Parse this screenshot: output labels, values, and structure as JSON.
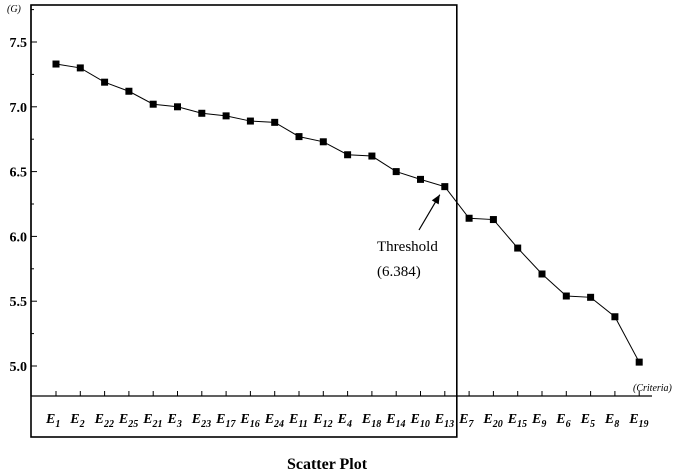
{
  "chart_data": {
    "type": "line",
    "y_unit": "(G)",
    "x_unit": "(Criteria)",
    "title": "Scatter Plot",
    "ylim": [
      4.85,
      7.65
    ],
    "yticks": [
      5.0,
      5.5,
      6.0,
      6.5,
      7.0,
      7.5
    ],
    "categories": [
      {
        "base": "E",
        "sub": "1"
      },
      {
        "base": "E",
        "sub": "2"
      },
      {
        "base": "E",
        "sub": "22"
      },
      {
        "base": "E",
        "sub": "25"
      },
      {
        "base": "E",
        "sub": "21"
      },
      {
        "base": "E",
        "sub": "3"
      },
      {
        "base": "E",
        "sub": "23"
      },
      {
        "base": "E",
        "sub": "17"
      },
      {
        "base": "E",
        "sub": "16"
      },
      {
        "base": "E",
        "sub": "24"
      },
      {
        "base": "E",
        "sub": "11"
      },
      {
        "base": "E",
        "sub": "12"
      },
      {
        "base": "E",
        "sub": "4"
      },
      {
        "base": "E",
        "sub": "18"
      },
      {
        "base": "E",
        "sub": "14"
      },
      {
        "base": "E",
        "sub": "10"
      },
      {
        "base": "E",
        "sub": "13"
      },
      {
        "base": "E",
        "sub": "7"
      },
      {
        "base": "E",
        "sub": "20"
      },
      {
        "base": "E",
        "sub": "15"
      },
      {
        "base": "E",
        "sub": "9"
      },
      {
        "base": "E",
        "sub": "6"
      },
      {
        "base": "E",
        "sub": "5"
      },
      {
        "base": "E",
        "sub": "8"
      },
      {
        "base": "E",
        "sub": "19"
      }
    ],
    "values": [
      7.33,
      7.3,
      7.19,
      7.12,
      7.02,
      7.0,
      6.95,
      6.93,
      6.89,
      6.88,
      6.77,
      6.73,
      6.63,
      6.62,
      6.5,
      6.44,
      6.384,
      6.14,
      6.13,
      5.91,
      5.71,
      5.54,
      5.53,
      5.38,
      5.03
    ],
    "threshold": {
      "label": "Threshold",
      "value_text": "(6.384)",
      "category_index": 16
    },
    "highlight_box_last_index": 16,
    "marker": "square",
    "color": "#000000"
  }
}
